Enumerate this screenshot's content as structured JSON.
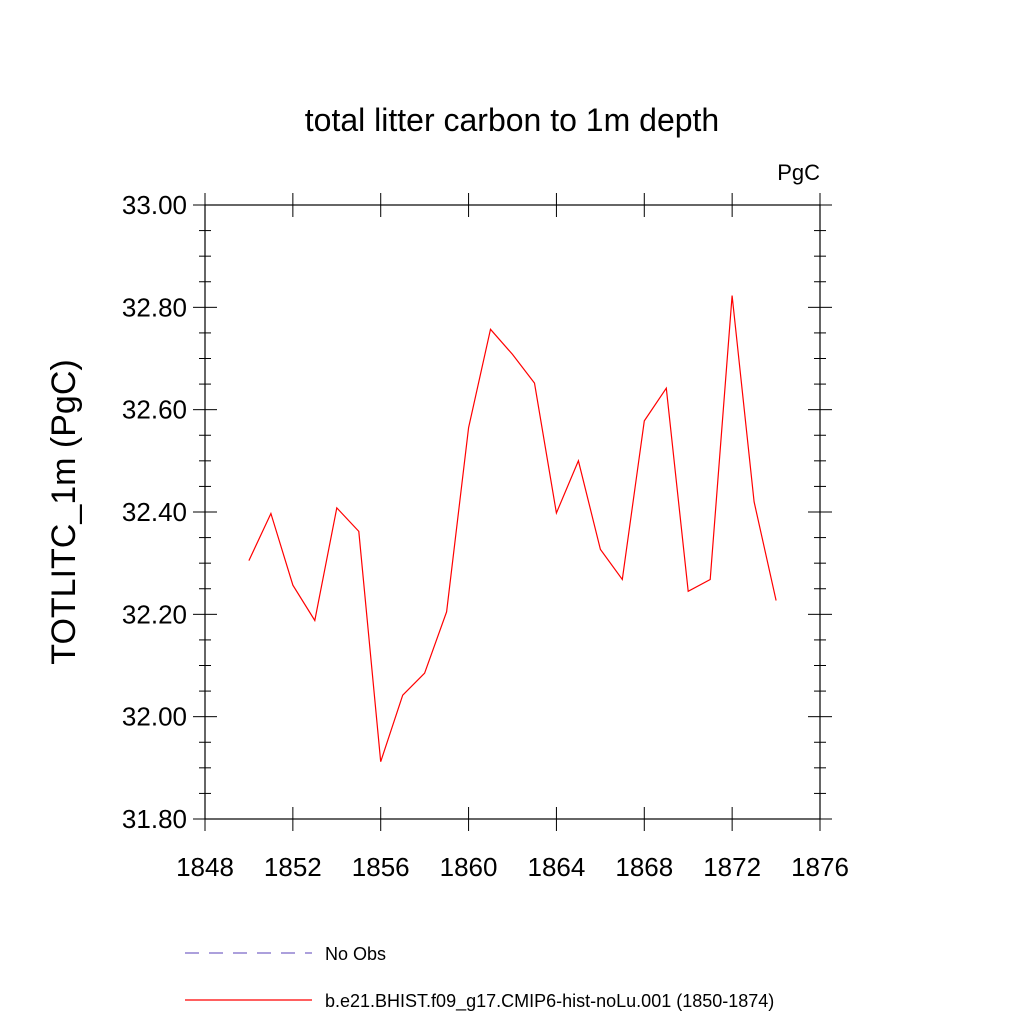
{
  "chart_data": {
    "type": "line",
    "title": "total litter carbon to 1m depth",
    "units_label": "PgC",
    "ylabel": "TOTLITC_1m  (PgC)",
    "xlabel": "",
    "xlim": [
      1848,
      1876
    ],
    "ylim": [
      31.8,
      33.0
    ],
    "x_ticks": [
      "1848",
      "1852",
      "1856",
      "1860",
      "1864",
      "1868",
      "1872",
      "1876"
    ],
    "y_ticks": [
      "31.80",
      "32.00",
      "32.20",
      "32.40",
      "32.60",
      "32.80",
      "33.00"
    ],
    "grid": false,
    "legend_position": "bottom",
    "series": [
      {
        "name": "No Obs",
        "color": "#7b68c8",
        "dash": "dashed",
        "x": [],
        "y": []
      },
      {
        "name": "b.e21.BHIST.f09_g17.CMIP6-hist-noLu.001 (1850-1874)",
        "color": "#ff0000",
        "dash": "solid",
        "x": [
          1850,
          1851,
          1852,
          1853,
          1854,
          1855,
          1856,
          1857,
          1858,
          1859,
          1860,
          1861,
          1862,
          1863,
          1864,
          1865,
          1866,
          1867,
          1868,
          1869,
          1870,
          1871,
          1872,
          1873,
          1874
        ],
        "y": [
          32.305,
          32.397,
          32.257,
          32.188,
          32.408,
          32.362,
          31.912,
          32.042,
          32.085,
          32.205,
          32.565,
          32.757,
          32.708,
          32.652,
          32.398,
          32.5,
          32.327,
          32.268,
          32.578,
          32.642,
          32.245,
          32.268,
          32.823,
          32.42,
          32.227
        ]
      }
    ]
  }
}
